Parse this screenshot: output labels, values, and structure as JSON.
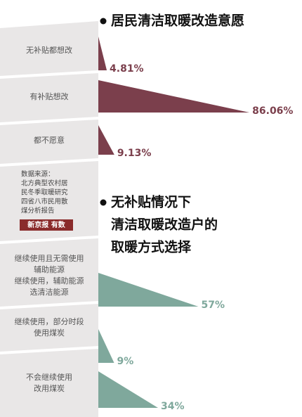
{
  "chart_data": [
    {
      "type": "triangle-bar",
      "title": [
        "居民清洁取暖改造意愿"
      ],
      "categories": [
        [
          "无补贴都想改"
        ],
        [
          "有补贴想改"
        ],
        [
          "都不愿意"
        ]
      ],
      "values": [
        4.81,
        86.06,
        9.13
      ],
      "value_labels": [
        "4.81%",
        "86.06%",
        "9.13%"
      ],
      "color": "#7b3f4c",
      "xlim": [
        0,
        100
      ]
    },
    {
      "type": "triangle-bar",
      "title": [
        "无补贴情况下",
        "清洁取暖改造户的",
        "取暖方式选择"
      ],
      "categories": [
        [
          "继续使用且无需使用",
          "辅助能源",
          "继续使用，辅助能源",
          "选清洁能源"
        ],
        [
          "继续使用，部分时段",
          "使用煤炭"
        ],
        [
          "不会继续使用",
          "改用煤炭"
        ]
      ],
      "values": [
        57,
        9,
        34
      ],
      "value_labels": [
        "57%",
        "9%",
        "34%"
      ],
      "color": "#7fa89c",
      "xlim": [
        0,
        100
      ]
    }
  ],
  "source": {
    "lines": [
      "数据来源：",
      "北方典型农村居",
      "民冬季取暖研究",
      "四省八市民用散",
      "煤分析报告"
    ],
    "logo": "新京报 有数"
  }
}
